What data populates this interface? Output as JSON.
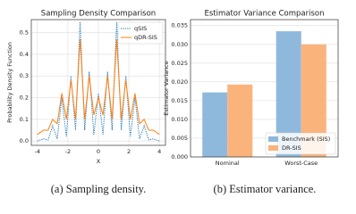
{
  "chart_data": [
    {
      "type": "line",
      "title": "Sampling Density Comparison",
      "x_label": "X",
      "y_label": "Probability Density Function",
      "caption": "(a) Sampling density.",
      "x": [
        -4,
        -3.6,
        -3.3,
        -3.0,
        -2.7,
        -2.4,
        -2.1,
        -1.8,
        -1.5,
        -1.2,
        -0.9,
        -0.6,
        -0.3,
        0,
        0.3,
        0.6,
        0.9,
        1.2,
        1.5,
        1.8,
        2.1,
        2.4,
        2.7,
        3.0,
        3.3,
        3.6,
        4
      ],
      "series": [
        {
          "name": "qSIS",
          "color": "#1f77b4",
          "dash": "1.2 1.2",
          "values": [
            0.0,
            0.01,
            0.005,
            0.07,
            0.01,
            0.2,
            0.02,
            0.3,
            0.05,
            0.55,
            0.05,
            0.32,
            0.03,
            0.22,
            0.03,
            0.32,
            0.05,
            0.55,
            0.05,
            0.3,
            0.02,
            0.2,
            0.01,
            0.07,
            0.005,
            0.01,
            0.0
          ]
        },
        {
          "name": "qDR-SIS",
          "color": "#ff7f0e",
          "values": [
            0.03,
            0.05,
            0.05,
            0.1,
            0.08,
            0.22,
            0.1,
            0.28,
            0.1,
            0.47,
            0.1,
            0.3,
            0.12,
            0.2,
            0.12,
            0.3,
            0.1,
            0.47,
            0.1,
            0.28,
            0.1,
            0.22,
            0.08,
            0.1,
            0.05,
            0.05,
            0.03
          ]
        }
      ],
      "xlim": [
        -4.4,
        4.4
      ],
      "xticks": [
        -4,
        -2,
        0,
        2,
        4
      ],
      "ylim": [
        -0.02,
        0.56
      ],
      "yticks": [
        {
          "value": 0,
          "label": "0.0"
        },
        0.1,
        0.2,
        0.3,
        0.4,
        0.5
      ],
      "grid": true,
      "legend": "upper right"
    },
    {
      "type": "bar",
      "title": "Estimator Variance Comparison",
      "y_label": "Estimator Variance",
      "caption": "(b) Estimator variance.",
      "categories": [
        "Nominal",
        "Worst-Case"
      ],
      "series": [
        {
          "name": "Benchmark (SIS)",
          "color": "#8fb9dc",
          "values": [
            0.0172,
            0.0335
          ]
        },
        {
          "name": "DR-SIS",
          "color": "#fbb37c",
          "values": [
            0.0193,
            0.03
          ]
        }
      ],
      "ylim": [
        0,
        0.0366
      ],
      "yticks": [
        {
          "value": 0,
          "label": "0.000"
        },
        {
          "value": 0.005,
          "label": "0.005"
        },
        {
          "value": 0.01,
          "label": "0.010"
        },
        {
          "value": 0.015,
          "label": "0.015"
        },
        {
          "value": 0.02,
          "label": "0.020"
        },
        {
          "value": 0.025,
          "label": "0.025"
        },
        {
          "value": 0.03,
          "label": "0.030"
        },
        {
          "value": 0.035,
          "label": "0.035"
        }
      ],
      "grid": true,
      "legend": "lower right"
    }
  ]
}
